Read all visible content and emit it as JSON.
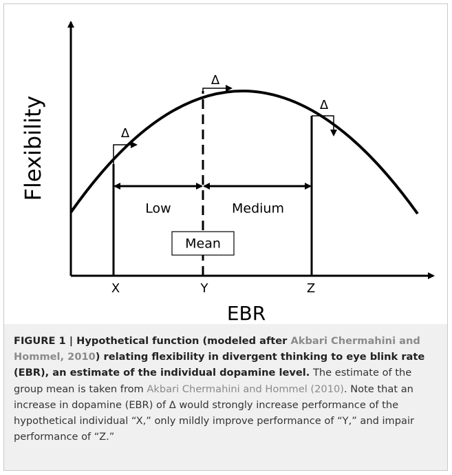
{
  "figure": {
    "y_axis_label": "Flexibility",
    "x_axis_label": "EBR",
    "points": [
      "X",
      "Y",
      "Z"
    ],
    "deltas": [
      "Δ",
      "Δ",
      "Δ"
    ],
    "regions": [
      "Low",
      "Medium"
    ],
    "mean_label": "Mean"
  },
  "caption": {
    "bold_1": "FIGURE 1 | Hypothetical function (modeled after ",
    "bold_link": "Akbari Chermahini and Hommel, 2010",
    "bold_2": ") relating flexibility in divergent thinking to eye blink rate (EBR), an estimate of the individual dopamine level.",
    "text_1": " The estimate of the group mean is taken from ",
    "text_link": "Akbari Chermahini and Hommel (2010)",
    "text_2": ". Note that an increase in dopamine (EBR) of Δ would strongly increase performance of the hypothetical individual “X,” only mildly improve performance of “Y,” and impair performance of “Z.”"
  }
}
